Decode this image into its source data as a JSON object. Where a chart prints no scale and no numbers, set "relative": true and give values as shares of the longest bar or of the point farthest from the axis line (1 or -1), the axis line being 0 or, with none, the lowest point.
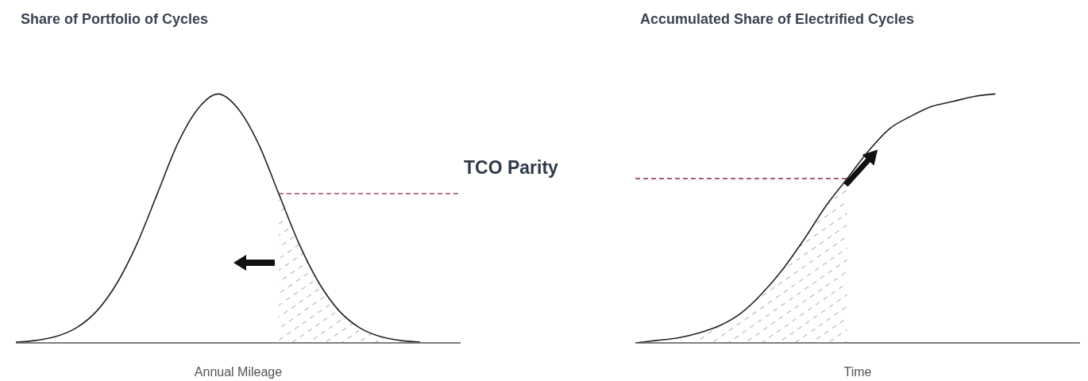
{
  "chart_data": [
    {
      "type": "line",
      "relative": true,
      "ylabel": "Share of Portfolio of Cycles",
      "xlabel": "Annual Mileage",
      "categories": [
        null,
        null,
        null,
        null,
        null,
        null,
        null,
        null,
        null,
        null,
        null,
        null,
        null,
        null,
        null,
        null,
        null,
        null,
        null,
        null,
        null,
        null,
        null
      ],
      "series": [
        {
          "color": "#222222",
          "values": [
            0.003,
            0.01,
            0.026,
            0.061,
            0.128,
            0.24,
            0.4,
            0.6,
            0.8,
            0.94,
            1,
            0.94,
            0.8,
            0.6,
            0.4,
            0.24,
            0.128,
            0.061,
            0.026,
            0.01,
            0.003,
            null,
            null
          ]
        },
        {
          "type": "area",
          "color": "#777777",
          "values": [
            null,
            null,
            null,
            null,
            null,
            null,
            null,
            null,
            null,
            null,
            null,
            null,
            null,
            0.6,
            0.4,
            0.24,
            0.128,
            0.061,
            0.026,
            0.01,
            0.003,
            null,
            null
          ]
        }
      ],
      "ref_lines": [
        {
          "axis": "y",
          "value": 0.6,
          "label": "TCO Parity",
          "color": "#8b2a3a",
          "line_style": "dashed"
        }
      ],
      "marker": "none"
    },
    {
      "type": "line",
      "relative": true,
      "ylabel": "Accumulated Share of Electrified Cycles",
      "xlabel": "Time",
      "categories": [
        null,
        null,
        null,
        null,
        null,
        null,
        null,
        null,
        null,
        null,
        null,
        null,
        null,
        null,
        null,
        null,
        null,
        null,
        null,
        null,
        null,
        null
      ],
      "series": [
        {
          "color": "#222222",
          "values": [
            0,
            0.01,
            0.02,
            0.04,
            0.07,
            0.12,
            0.2,
            0.3,
            0.42,
            0.55,
            0.66,
            0.77,
            0.86,
            0.91,
            0.95,
            0.97,
            0.99,
            1,
            null,
            null,
            null,
            null
          ]
        },
        {
          "type": "area",
          "color": "#777777",
          "values": [
            null,
            null,
            null,
            0.04,
            0.07,
            0.12,
            0.2,
            0.3,
            0.42,
            0.55,
            0.66,
            null,
            null,
            null,
            null,
            null,
            null,
            null,
            null,
            null,
            null,
            null
          ]
        }
      ],
      "ref_lines": [
        {
          "axis": "y",
          "value": 0.66,
          "color": "#8b2a3a",
          "line_style": "dashed"
        }
      ],
      "marker": "none"
    }
  ]
}
